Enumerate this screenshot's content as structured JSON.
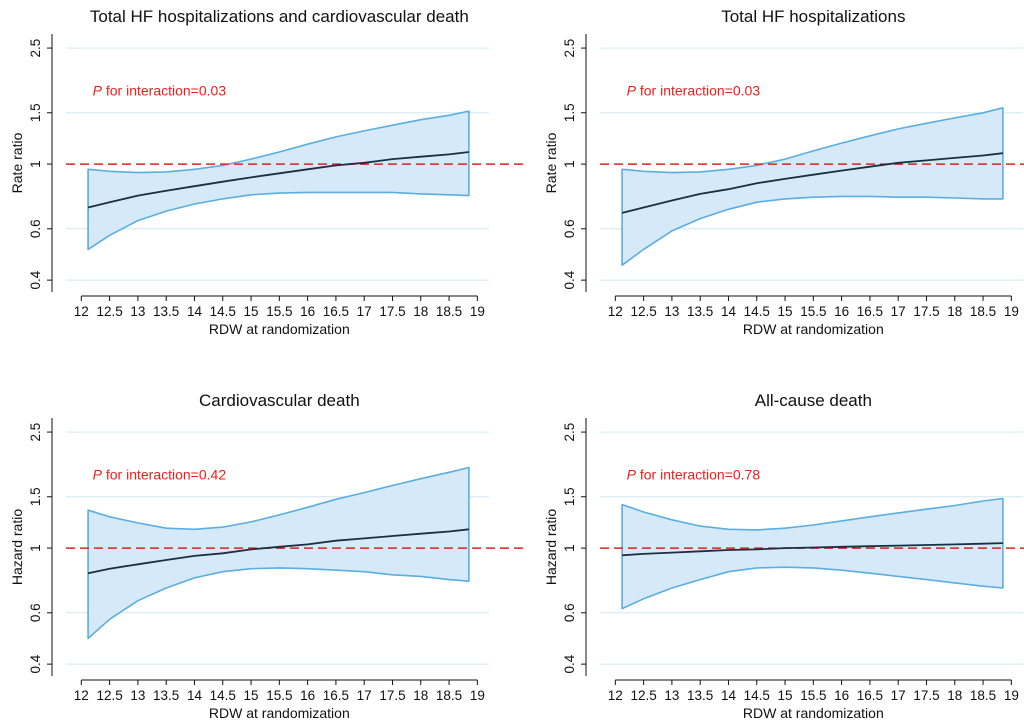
{
  "chart_data": [
    {
      "type": "line",
      "title": "Total HF hospitalizations and cardiovascular death",
      "xlabel": "RDW at randomization",
      "ylabel": "Rate ratio",
      "annotation_p": "P",
      "annotation_text": " for interaction=0.03",
      "x_ticks": [
        "12",
        "12.5",
        "13",
        "13.5",
        "14",
        "14.5",
        "15",
        "15.5",
        "16",
        "16.5",
        "17",
        "17.5",
        "18",
        "18.5",
        "19"
      ],
      "y_ticks": [
        "0.4",
        "0.6",
        "1",
        "1.5",
        "2.5"
      ],
      "y_scale": "log",
      "xlim": [
        11.8,
        19.1
      ],
      "ylim": [
        0.37,
        2.75
      ],
      "reference_line": 1,
      "x": [
        12.12,
        12.5,
        13,
        13.5,
        14,
        14.5,
        15,
        15.5,
        16,
        16.5,
        17,
        17.5,
        18,
        18.5,
        18.85
      ],
      "series": [
        {
          "role": "estimate",
          "values": [
            0.71,
            0.74,
            0.78,
            0.81,
            0.84,
            0.87,
            0.9,
            0.93,
            0.96,
            0.99,
            1.01,
            1.04,
            1.06,
            1.08,
            1.1
          ]
        },
        {
          "role": "ci_upper",
          "values": [
            0.96,
            0.945,
            0.935,
            0.94,
            0.96,
            0.99,
            1.04,
            1.1,
            1.17,
            1.24,
            1.3,
            1.36,
            1.42,
            1.47,
            1.52
          ]
        },
        {
          "role": "ci_lower",
          "values": [
            0.51,
            0.57,
            0.64,
            0.69,
            0.73,
            0.76,
            0.785,
            0.795,
            0.8,
            0.8,
            0.8,
            0.8,
            0.79,
            0.785,
            0.78
          ]
        }
      ]
    },
    {
      "type": "line",
      "title": "Total HF hospitalizations",
      "xlabel": "RDW at randomization",
      "ylabel": "Rate ratio",
      "annotation_p": "P",
      "annotation_text": " for interaction=0.03",
      "x_ticks": [
        "12",
        "12.5",
        "13",
        "13.5",
        "14",
        "14.5",
        "15",
        "15.5",
        "16",
        "16.5",
        "17",
        "17.5",
        "18",
        "18.5",
        "19"
      ],
      "y_ticks": [
        "0.4",
        "0.6",
        "1",
        "1.5",
        "2.5"
      ],
      "y_scale": "log",
      "xlim": [
        11.8,
        19.1
      ],
      "ylim": [
        0.37,
        2.75
      ],
      "reference_line": 1,
      "x": [
        12.12,
        12.5,
        13,
        13.5,
        14,
        14.5,
        15,
        15.5,
        16,
        16.5,
        17,
        17.5,
        18,
        18.5,
        18.85
      ],
      "series": [
        {
          "role": "estimate",
          "values": [
            0.68,
            0.71,
            0.75,
            0.79,
            0.82,
            0.86,
            0.89,
            0.92,
            0.95,
            0.98,
            1.01,
            1.03,
            1.05,
            1.07,
            1.09
          ]
        },
        {
          "role": "ci_upper",
          "values": [
            0.96,
            0.945,
            0.935,
            0.94,
            0.96,
            0.99,
            1.04,
            1.11,
            1.18,
            1.25,
            1.32,
            1.38,
            1.44,
            1.5,
            1.56
          ]
        },
        {
          "role": "ci_lower",
          "values": [
            0.45,
            0.51,
            0.59,
            0.65,
            0.7,
            0.74,
            0.76,
            0.77,
            0.775,
            0.775,
            0.77,
            0.77,
            0.765,
            0.76,
            0.76
          ]
        }
      ]
    },
    {
      "type": "line",
      "title": "Cardiovascular death",
      "xlabel": "RDW at randomization",
      "ylabel": "Hazard ratio",
      "annotation_p": "P",
      "annotation_text": " for interaction=0.42",
      "x_ticks": [
        "12",
        "12.5",
        "13",
        "13.5",
        "14",
        "14.5",
        "15",
        "15.5",
        "16",
        "16.5",
        "17",
        "17.5",
        "18",
        "18.5",
        "19"
      ],
      "y_ticks": [
        "0.4",
        "0.6",
        "1",
        "1.5",
        "2.5"
      ],
      "y_scale": "log",
      "xlim": [
        11.8,
        19.1
      ],
      "ylim": [
        0.37,
        2.75
      ],
      "reference_line": 1,
      "x": [
        12.12,
        12.5,
        13,
        13.5,
        14,
        14.5,
        15,
        15.5,
        16,
        16.5,
        17,
        17.5,
        18,
        18.5,
        18.85
      ],
      "series": [
        {
          "role": "estimate",
          "values": [
            0.82,
            0.85,
            0.88,
            0.91,
            0.94,
            0.96,
            0.99,
            1.01,
            1.03,
            1.06,
            1.08,
            1.1,
            1.12,
            1.14,
            1.16
          ]
        },
        {
          "role": "ci_upper",
          "values": [
            1.35,
            1.28,
            1.22,
            1.17,
            1.16,
            1.18,
            1.23,
            1.3,
            1.38,
            1.47,
            1.55,
            1.64,
            1.73,
            1.82,
            1.89
          ]
        },
        {
          "role": "ci_lower",
          "values": [
            0.49,
            0.57,
            0.66,
            0.73,
            0.79,
            0.83,
            0.85,
            0.855,
            0.85,
            0.84,
            0.83,
            0.81,
            0.8,
            0.78,
            0.77
          ]
        }
      ]
    },
    {
      "type": "line",
      "title": "All-cause death",
      "xlabel": "RDW at randomization",
      "ylabel": "Hazard ratio",
      "annotation_p": "P",
      "annotation_text": " for interaction=0.78",
      "x_ticks": [
        "12",
        "12.5",
        "13",
        "13.5",
        "14",
        "14.5",
        "15",
        "15.5",
        "16",
        "16.5",
        "17",
        "17.5",
        "18",
        "18.5",
        "19"
      ],
      "y_ticks": [
        "0.4",
        "0.6",
        "1",
        "1.5",
        "2.5"
      ],
      "y_scale": "log",
      "xlim": [
        11.8,
        19.1
      ],
      "ylim": [
        0.37,
        2.75
      ],
      "reference_line": 1,
      "x": [
        12.12,
        12.5,
        13,
        13.5,
        14,
        14.5,
        15,
        15.5,
        16,
        16.5,
        17,
        17.5,
        18,
        18.5,
        18.85
      ],
      "series": [
        {
          "role": "estimate",
          "values": [
            0.945,
            0.955,
            0.965,
            0.975,
            0.985,
            0.99,
            1.0,
            1.005,
            1.01,
            1.015,
            1.02,
            1.025,
            1.03,
            1.035,
            1.04
          ]
        },
        {
          "role": "ci_upper",
          "values": [
            1.41,
            1.33,
            1.25,
            1.19,
            1.16,
            1.155,
            1.17,
            1.2,
            1.24,
            1.28,
            1.32,
            1.36,
            1.4,
            1.45,
            1.48
          ]
        },
        {
          "role": "ci_lower",
          "values": [
            0.62,
            0.67,
            0.73,
            0.78,
            0.83,
            0.855,
            0.86,
            0.855,
            0.84,
            0.82,
            0.8,
            0.78,
            0.76,
            0.74,
            0.73
          ]
        }
      ]
    }
  ],
  "colors": {
    "band_fill": "#d5e9f8",
    "band_edge": "#5aaee0",
    "estimate": "#1a2f40",
    "reference": "#e0201c",
    "gridline": "#d8ecf4",
    "annotation": "#e8201c",
    "axis": "#111111"
  }
}
